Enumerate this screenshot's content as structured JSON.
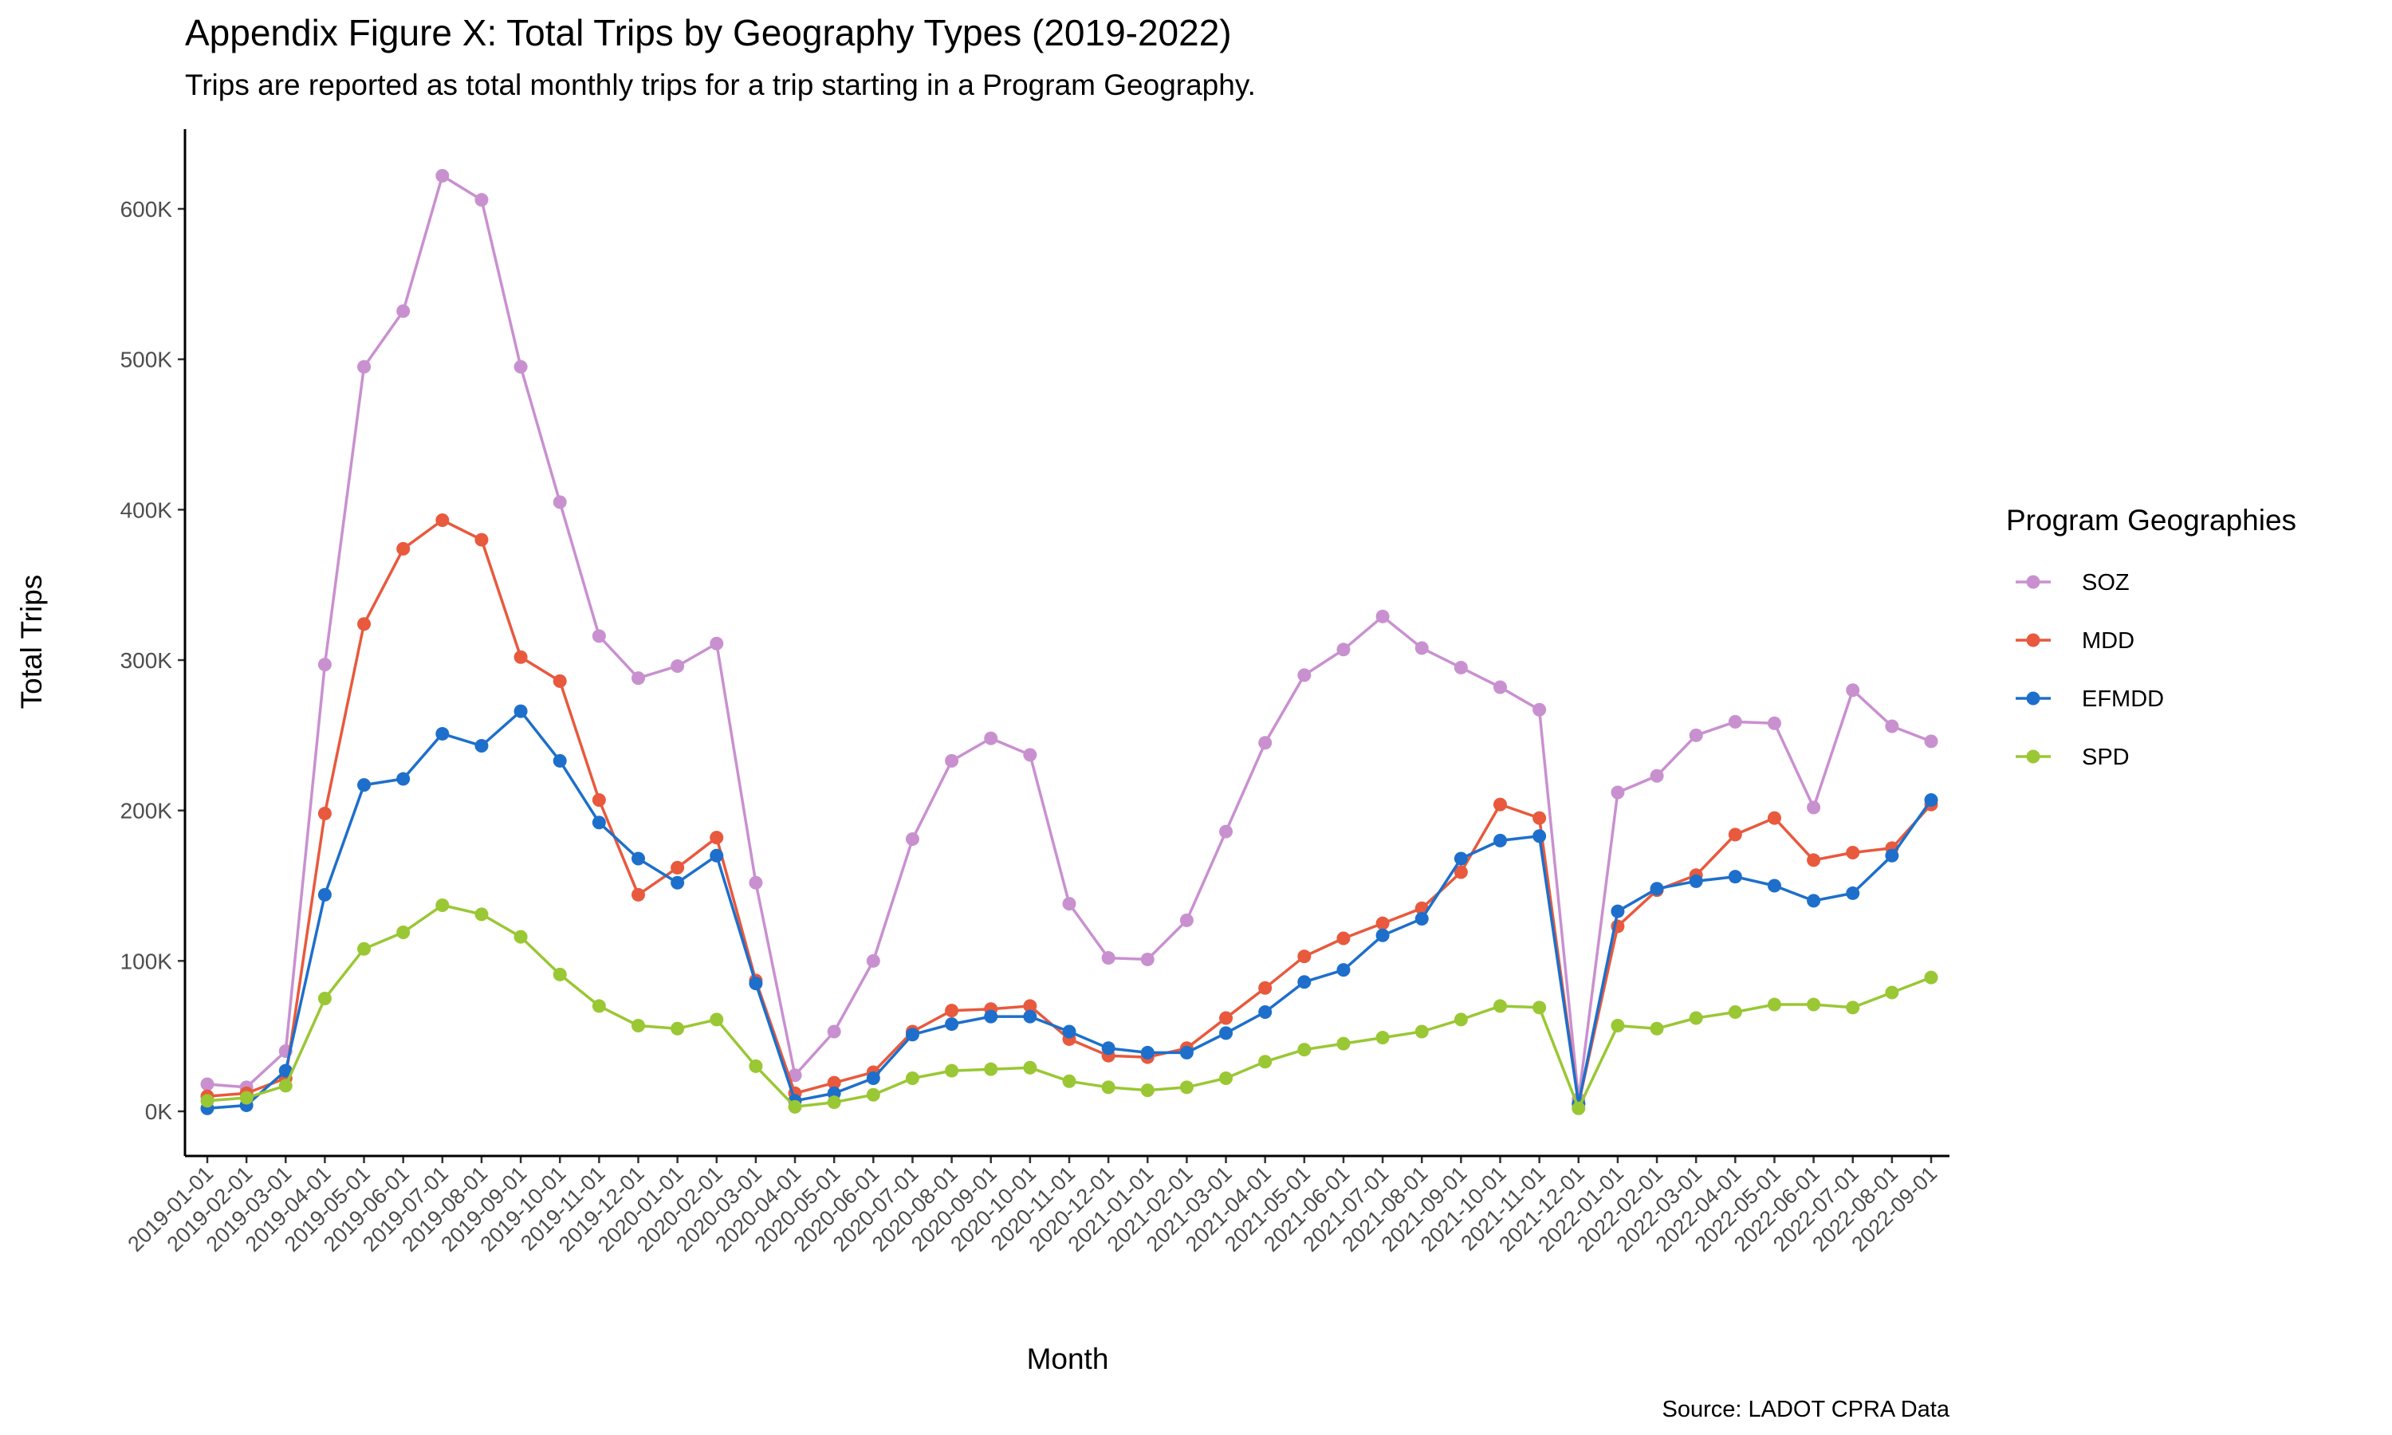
{
  "chart_data": {
    "type": "line",
    "title": "Appendix Figure X: Total Trips by Geography Types (2019-2022)",
    "subtitle": "Trips are reported as total monthly trips for a trip starting in a Program Geography.",
    "xlabel": "Month",
    "ylabel": "Total Trips",
    "caption": "Source: LADOT CPRA Data",
    "legend_title": "Program Geographies",
    "legend_position": "right",
    "grid": false,
    "ylim": [
      -30000,
      650000
    ],
    "y_ticks": [
      0,
      100000,
      200000,
      300000,
      400000,
      500000,
      600000
    ],
    "y_tick_labels": [
      "0K",
      "100K",
      "200K",
      "300K",
      "400K",
      "500K",
      "600K"
    ],
    "x": [
      "2019-01-01",
      "2019-02-01",
      "2019-03-01",
      "2019-04-01",
      "2019-05-01",
      "2019-06-01",
      "2019-07-01",
      "2019-08-01",
      "2019-09-01",
      "2019-10-01",
      "2019-11-01",
      "2019-12-01",
      "2020-01-01",
      "2020-02-01",
      "2020-03-01",
      "2020-04-01",
      "2020-05-01",
      "2020-06-01",
      "2020-07-01",
      "2020-08-01",
      "2020-09-01",
      "2020-10-01",
      "2020-11-01",
      "2020-12-01",
      "2021-01-01",
      "2021-02-01",
      "2021-03-01",
      "2021-04-01",
      "2021-05-01",
      "2021-06-01",
      "2021-07-01",
      "2021-08-01",
      "2021-09-01",
      "2021-10-01",
      "2021-11-01",
      "2021-12-01",
      "2022-01-01",
      "2022-02-01",
      "2022-03-01",
      "2022-04-01",
      "2022-05-01",
      "2022-06-01",
      "2022-07-01",
      "2022-08-01",
      "2022-09-01"
    ],
    "series": [
      {
        "name": "SOZ",
        "color": "#c990d0",
        "values": [
          18000,
          16000,
          40000,
          297000,
          495000,
          532000,
          622000,
          606000,
          495000,
          405000,
          316000,
          288000,
          296000,
          311000,
          152000,
          24000,
          53000,
          100000,
          181000,
          233000,
          248000,
          237000,
          138000,
          102000,
          101000,
          127000,
          186000,
          245000,
          290000,
          307000,
          329000,
          308000,
          295000,
          282000,
          267000,
          8000,
          212000,
          223000,
          250000,
          259000,
          258000,
          202000,
          280000,
          256000,
          246000
        ]
      },
      {
        "name": "MDD",
        "color": "#e8593d",
        "values": [
          10000,
          12000,
          22000,
          198000,
          324000,
          374000,
          393000,
          380000,
          302000,
          286000,
          207000,
          144000,
          162000,
          182000,
          87000,
          12000,
          19000,
          26000,
          53000,
          67000,
          68000,
          70000,
          48000,
          37000,
          36000,
          42000,
          62000,
          82000,
          103000,
          115000,
          125000,
          135000,
          159000,
          204000,
          195000,
          5000,
          123000,
          147000,
          157000,
          184000,
          195000,
          167000,
          172000,
          175000,
          204000
        ]
      },
      {
        "name": "EFMDD",
        "color": "#1d6fcb",
        "values": [
          2000,
          4000,
          27000,
          144000,
          217000,
          221000,
          251000,
          243000,
          266000,
          233000,
          192000,
          168000,
          152000,
          170000,
          85000,
          7000,
          12000,
          22000,
          51000,
          58000,
          63000,
          63000,
          53000,
          42000,
          39000,
          39000,
          52000,
          66000,
          86000,
          94000,
          117000,
          128000,
          168000,
          180000,
          183000,
          5000,
          133000,
          148000,
          153000,
          156000,
          150000,
          140000,
          145000,
          170000,
          207000
        ]
      },
      {
        "name": "SPD",
        "color": "#9ac734",
        "values": [
          7000,
          9000,
          17000,
          75000,
          108000,
          119000,
          137000,
          131000,
          116000,
          91000,
          70000,
          57000,
          55000,
          61000,
          30000,
          3000,
          6000,
          11000,
          22000,
          27000,
          28000,
          29000,
          20000,
          16000,
          14000,
          16000,
          22000,
          33000,
          41000,
          45000,
          49000,
          53000,
          61000,
          70000,
          69000,
          2000,
          57000,
          55000,
          62000,
          66000,
          71000,
          71000,
          69000,
          79000,
          89000
        ]
      }
    ]
  }
}
